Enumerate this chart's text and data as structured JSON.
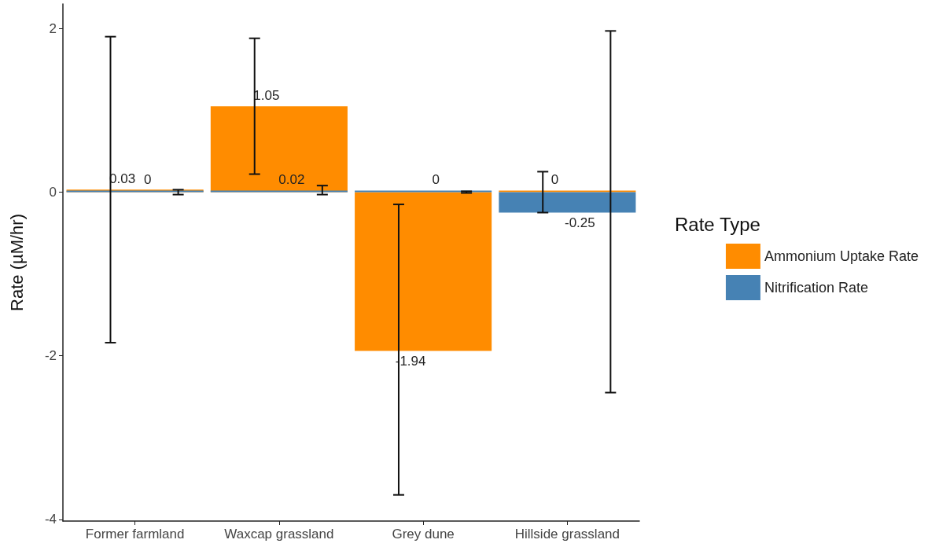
{
  "chart_data": {
    "type": "bar",
    "ylabel": "Rate (µM/hr)",
    "legend_title": "Rate Type",
    "categories": [
      "Former farmland",
      "Waxcap grassland",
      "Grey dune",
      "Hillside grassland"
    ],
    "series": [
      {
        "name": "Ammonium Uptake Rate",
        "color": "#ff8c00",
        "values": [
          0.03,
          1.05,
          -1.94,
          0
        ],
        "errors": [
          [
            -1.84,
            1.9
          ],
          [
            0.22,
            1.88
          ],
          [
            -3.7,
            -0.15
          ],
          [
            -0.25,
            0.25
          ]
        ]
      },
      {
        "name": "Nitrification Rate",
        "color": "#4682b4",
        "values": [
          0,
          0.02,
          0,
          -0.25
        ],
        "errors": [
          [
            -0.03,
            0.03
          ],
          [
            -0.03,
            0.08
          ],
          [
            -0.01,
            0.01
          ],
          [
            -2.45,
            1.97
          ]
        ]
      }
    ],
    "ylim": [
      -4.02,
      2.3
    ],
    "yticks": [
      -4,
      -2,
      0,
      2
    ],
    "data_labels": true,
    "grid": false,
    "legend": "right"
  }
}
